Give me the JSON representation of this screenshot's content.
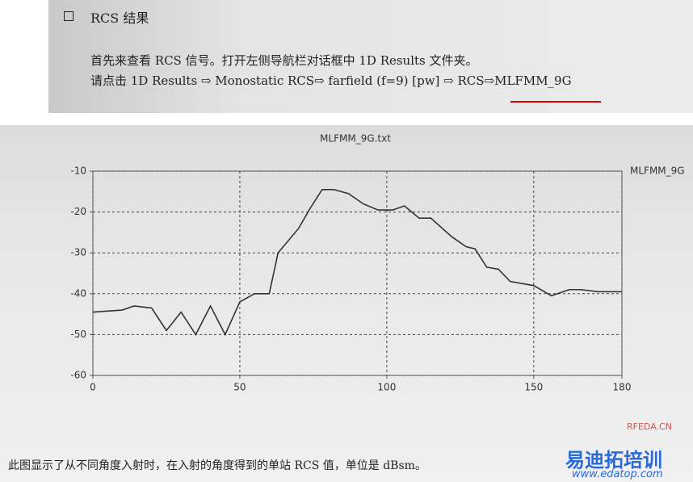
{
  "header": {
    "section_title": "RCS 结果",
    "line1": "首先来查看 RCS 信号。打开左侧导航栏对话框中 1D Results 文件夹。",
    "line2": "请点击 1D Results ⇨ Monostatic RCS⇨ farfield (f=9) [pw] ⇨ RCS⇨MLFMM_9G"
  },
  "chart_data": {
    "type": "line",
    "title": "MLFMM_9G.txt",
    "x": [
      0,
      10,
      14,
      20,
      25,
      30,
      35,
      40,
      45,
      50,
      55,
      60,
      63,
      70,
      74,
      78,
      82,
      87,
      92,
      97,
      102,
      106,
      111,
      115,
      122,
      127,
      130,
      134,
      138,
      142,
      146,
      150,
      156,
      162,
      166,
      172,
      180
    ],
    "series": [
      {
        "name": "MLFMM_9G",
        "color": "#333333",
        "values": [
          -44.5,
          -44,
          -43,
          -43.5,
          -49,
          -44.5,
          -50,
          -43,
          -50,
          -42,
          -40,
          -40,
          -30,
          -24,
          -19,
          -14.5,
          -14.5,
          -15.5,
          -18,
          -19.5,
          -19.5,
          -18.5,
          -21.5,
          -21.5,
          -26,
          -28.5,
          -29,
          -33.5,
          -34,
          -37,
          -37.5,
          -38,
          -40.5,
          -39,
          -39,
          -39.5,
          -39.5
        ]
      }
    ],
    "xlim": [
      0,
      180
    ],
    "xticks": [
      0,
      50,
      100,
      150,
      180
    ],
    "ylim": [
      -60,
      -10
    ],
    "yticks": [
      -60,
      -50,
      -40,
      -30,
      -20,
      -10
    ],
    "grid": true
  },
  "caption": "此图显示了从不同角度入射时，在入射的角度得到的单站 RCS 值，单位是 dBsm。",
  "watermark": {
    "site": "RFEDA.CN",
    "brand": "易迪拓培训",
    "url": "www.edatop.com"
  }
}
